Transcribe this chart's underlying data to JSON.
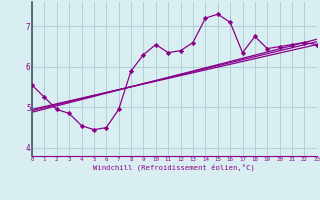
{
  "xlabel": "Windchill (Refroidissement éolien,°C)",
  "bg_color": "#d8eef0",
  "grid_color": "#a8ccd4",
  "line_color": "#8b008b",
  "spine_color": "#666688",
  "xlim": [
    0,
    23
  ],
  "ylim": [
    3.8,
    7.6
  ],
  "xticks": [
    0,
    1,
    2,
    3,
    4,
    5,
    6,
    7,
    8,
    9,
    10,
    11,
    12,
    13,
    14,
    15,
    16,
    17,
    18,
    19,
    20,
    21,
    22,
    23
  ],
  "yticks": [
    4,
    5,
    6,
    7
  ],
  "main_x": [
    0,
    1,
    2,
    3,
    4,
    5,
    6,
    7,
    8,
    9,
    10,
    11,
    12,
    13,
    14,
    15,
    16,
    17,
    18,
    19,
    20,
    21,
    22,
    23
  ],
  "main_y": [
    5.55,
    5.25,
    4.95,
    4.85,
    4.55,
    4.45,
    4.5,
    4.95,
    5.9,
    6.3,
    6.55,
    6.35,
    6.4,
    6.6,
    7.2,
    7.3,
    7.1,
    6.35,
    6.75,
    6.45,
    6.5,
    6.55,
    6.6,
    6.55
  ],
  "reg_line1_x": [
    0,
    23
  ],
  "reg_line1_y": [
    4.95,
    6.55
  ],
  "reg_line2_x": [
    0,
    23
  ],
  "reg_line2_y": [
    4.92,
    6.62
  ],
  "reg_line3_x": [
    0,
    23
  ],
  "reg_line3_y": [
    4.88,
    6.68
  ]
}
